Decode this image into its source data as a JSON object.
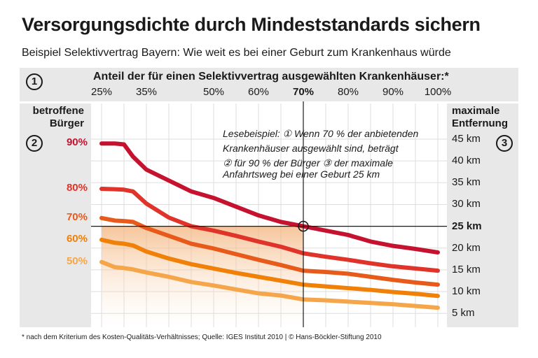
{
  "title": "Versorgungsdichte durch Mindeststandards sichern",
  "subtitle": "Beispiel Selektivvertrag Bayern: Wie weit es bei einer Geburt zum Krankenhaus würde",
  "footer": "* nach dem Kriterium des Kosten-Qualitäts-Verhältnisses; Quelle: IGES Institut 2010 | © Hans-Böckler-Stiftung 2010",
  "markers": {
    "one": "1",
    "two": "2",
    "three": "3"
  },
  "annotation": {
    "line1": "Lesebeispiel: ① Wenn 70 % der anbietenden",
    "line2": "Krankenhäuser ausgewählt sind, beträgt",
    "line3": "② für 90 % der Bürger ③ der maximale",
    "line4": "Anfahrtsweg bei einer Geburt 25 km"
  },
  "chart_data": {
    "type": "line",
    "title": "Anteil der für einen Selektivvertrag ausgewählten Krankenhäuser:*",
    "xlabel": "Anteil der für einen Selektivvertrag ausgewählten Krankenhäuser:*",
    "ylabel_left": "betroffene Bürger",
    "ylabel_right": "maximale Entfernung",
    "x_ticks": [
      "25%",
      "35%",
      "50%",
      "60%",
      "70%",
      "80%",
      "90%",
      "100%"
    ],
    "x_tick_values": [
      25,
      35,
      50,
      60,
      70,
      80,
      90,
      100
    ],
    "highlight_x_tick": "70%",
    "y_ticks": [
      "45 km",
      "40 km",
      "35 km",
      "30 km",
      "25 km",
      "20 km",
      "15 km",
      "10 km",
      "5 km"
    ],
    "y_tick_values": [
      45,
      40,
      35,
      30,
      25,
      20,
      15,
      10,
      5
    ],
    "highlight_y_tick": "25 km",
    "xlim": [
      25,
      100
    ],
    "ylim": [
      3,
      45
    ],
    "grid": true,
    "reference_point": {
      "x": 70,
      "y": 25
    },
    "x": [
      25,
      28,
      30,
      32,
      35,
      40,
      45,
      50,
      55,
      60,
      65,
      70,
      75,
      80,
      85,
      90,
      95,
      100
    ],
    "series": [
      {
        "name": "90%",
        "color": "#c4122f",
        "values": [
          44,
          44,
          43.8,
          41,
          38,
          35.5,
          33,
          31.5,
          29.5,
          27.5,
          26,
          25,
          24,
          23,
          21.5,
          20.5,
          19.8,
          19
        ]
      },
      {
        "name": "80%",
        "color": "#e0332a",
        "values": [
          33.6,
          33.5,
          33.4,
          33,
          30.2,
          27,
          25,
          24,
          22.8,
          21.5,
          20.3,
          18.8,
          18,
          17.3,
          16.5,
          15.8,
          15.3,
          14.8
        ]
      },
      {
        "name": "70%",
        "color": "#e85a1a",
        "values": [
          26.9,
          26.3,
          26.2,
          26,
          24.6,
          22.8,
          21,
          19.9,
          18.6,
          17.3,
          16.1,
          14.8,
          14.5,
          14.1,
          13.4,
          12.7,
          12.1,
          11.6
        ]
      },
      {
        "name": "60%",
        "color": "#f08008",
        "values": [
          21.9,
          21.2,
          21,
          20.6,
          19.2,
          17.6,
          16.3,
          15.3,
          14.3,
          13.4,
          12.5,
          11.6,
          11.2,
          10.8,
          10.4,
          9.9,
          9.5,
          9
        ]
      },
      {
        "name": "50%",
        "color": "#f5a64a",
        "values": [
          16.8,
          15.6,
          15.4,
          15.1,
          14.4,
          13.4,
          12.2,
          11.4,
          10.5,
          9.6,
          9.1,
          8.2,
          8,
          7.7,
          7.4,
          7.1,
          6.7,
          6.3
        ]
      }
    ]
  }
}
